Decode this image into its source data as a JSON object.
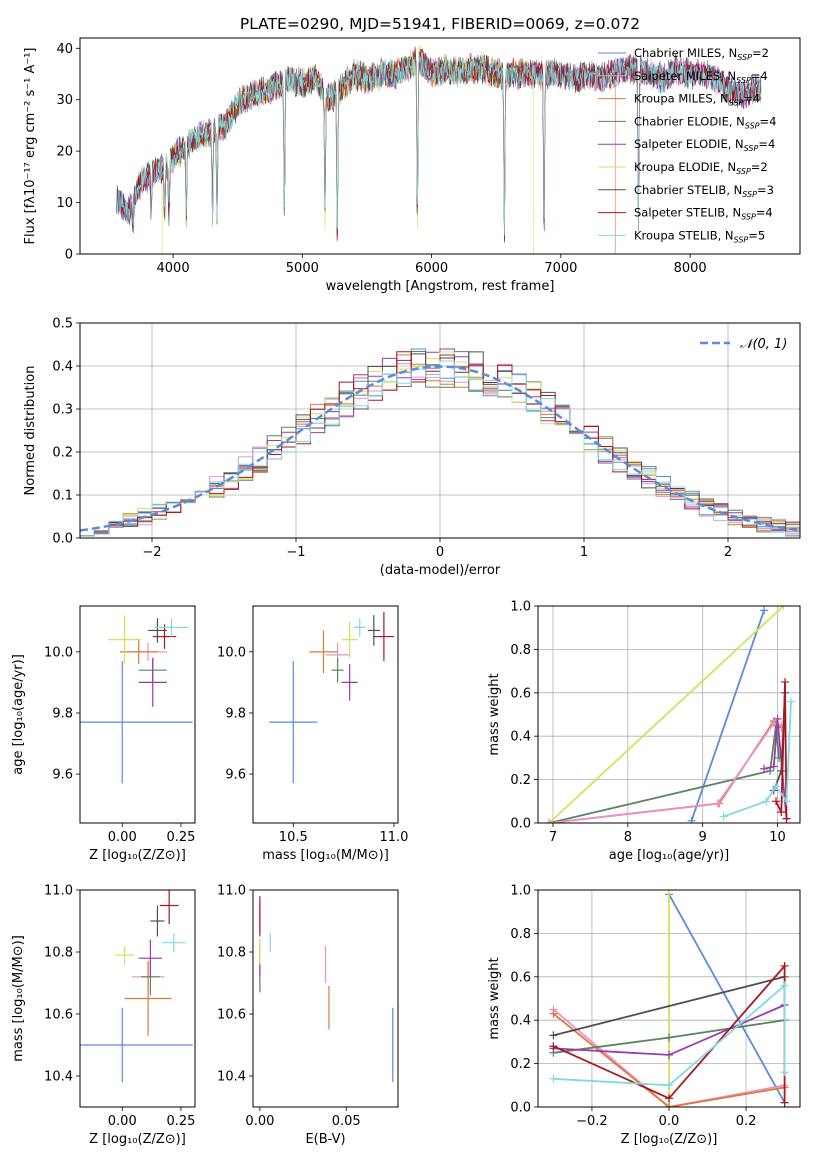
{
  "title": "PLATE=0290, MJD=51941, FIBERID=0069, z=0.072",
  "colors": {
    "chabrier_miles": "#5b8bdc",
    "salpeter_miles": "#e892c8",
    "kroupa_miles": "#dc7a36",
    "chabrier_elodie": "#5a8560",
    "salpeter_elodie": "#9a3aad",
    "kroupa_elodie": "#cfe45a",
    "chabrier_stelib": "#505050",
    "salpeter_stelib": "#a8181e",
    "kroupa_stelib": "#84d8e0",
    "normal_curve": "#5b8bdc"
  },
  "chart_data": [
    {
      "id": "spectrum",
      "type": "line",
      "xlabel": "wavelength [Angstrom, rest frame]",
      "ylabel": "Flux [fλ10⁻¹⁷ erg cm⁻² s⁻¹ A⁻¹]",
      "xlim": [
        3280,
        8850
      ],
      "ylim": [
        0,
        42
      ],
      "xticks": [
        4000,
        5000,
        6000,
        7000,
        8000
      ],
      "yticks": [
        0,
        10,
        20,
        30,
        40
      ],
      "legend": "right",
      "series": [
        {
          "name": "Chabrier MILES, N",
          "sub": "SSP",
          "suffix": "=2",
          "key": "chabrier_miles"
        },
        {
          "name": "Salpeter MILES, N",
          "sub": "SSP",
          "suffix": "=4",
          "key": "salpeter_miles"
        },
        {
          "name": "Kroupa MILES, N",
          "sub": "SSP",
          "suffix": "=4",
          "key": "kroupa_miles"
        },
        {
          "name": "Chabrier ELODIE, N",
          "sub": "SSP",
          "suffix": "=4",
          "key": "chabrier_elodie"
        },
        {
          "name": "Salpeter ELODIE, N",
          "sub": "SSP",
          "suffix": "=4",
          "key": "salpeter_elodie"
        },
        {
          "name": "Kroupa ELODIE, N",
          "sub": "SSP",
          "suffix": "=2",
          "key": "kroupa_elodie"
        },
        {
          "name": "Chabrier STELIB, N",
          "sub": "SSP",
          "suffix": "=3",
          "key": "chabrier_stelib"
        },
        {
          "name": "Salpeter STELIB, N",
          "sub": "SSP",
          "suffix": "=4",
          "key": "salpeter_stelib"
        },
        {
          "name": "Kroupa STELIB, N",
          "sub": "SSP",
          "suffix": "=5",
          "key": "kroupa_stelib"
        }
      ],
      "continuum": [
        [
          3560,
          11
        ],
        [
          3650,
          8
        ],
        [
          3750,
          14
        ],
        [
          3850,
          16
        ],
        [
          3950,
          17
        ],
        [
          4050,
          20
        ],
        [
          4150,
          22
        ],
        [
          4300,
          24
        ],
        [
          4400,
          25
        ],
        [
          4500,
          29
        ],
        [
          4600,
          31
        ],
        [
          4750,
          32
        ],
        [
          4900,
          34
        ],
        [
          5000,
          33
        ],
        [
          5100,
          34
        ],
        [
          5200,
          30
        ],
        [
          5300,
          32
        ],
        [
          5400,
          35
        ],
        [
          5500,
          34
        ],
        [
          5600,
          35
        ],
        [
          5700,
          35
        ],
        [
          5800,
          36
        ],
        [
          5900,
          38
        ],
        [
          6000,
          35
        ],
        [
          6100,
          36
        ],
        [
          6200,
          35
        ],
        [
          6300,
          36
        ],
        [
          6400,
          36
        ],
        [
          6500,
          35
        ],
        [
          6600,
          35
        ],
        [
          6700,
          35
        ],
        [
          6800,
          35
        ],
        [
          6900,
          35
        ],
        [
          7000,
          35
        ],
        [
          7100,
          34
        ],
        [
          7200,
          35
        ],
        [
          7300,
          34
        ],
        [
          7400,
          35
        ],
        [
          7500,
          36
        ],
        [
          7600,
          36
        ],
        [
          7700,
          35
        ],
        [
          7800,
          34
        ],
        [
          7900,
          36
        ],
        [
          8000,
          35
        ],
        [
          8100,
          35
        ],
        [
          8200,
          34
        ],
        [
          8300,
          32
        ],
        [
          8400,
          31
        ],
        [
          8500,
          32
        ],
        [
          8550,
          32
        ]
      ],
      "absorption": [
        [
          3690,
          5
        ],
        [
          3830,
          8
        ],
        [
          3934,
          10
        ],
        [
          3968,
          10
        ],
        [
          4102,
          15
        ],
        [
          4305,
          17
        ],
        [
          4340,
          17
        ],
        [
          4861,
          24
        ],
        [
          5175,
          24
        ],
        [
          5270,
          30
        ],
        [
          5890,
          31
        ],
        [
          6563,
          32
        ],
        [
          6870,
          31
        ],
        [
          7600,
          30
        ]
      ],
      "line_ends": [
        {
          "key": "kroupa_elodie",
          "from": 3915,
          "to": 6790
        },
        {
          "key": "kroupa_miles",
          "from": 3560,
          "to": 7420
        }
      ]
    },
    {
      "id": "residuals",
      "type": "bar",
      "xlabel": "(data-model)/error",
      "ylabel": "Normed distribution",
      "xlim": [
        -2.5,
        2.5
      ],
      "ylim": [
        0,
        0.5
      ],
      "xticks": [
        -2,
        -1,
        0,
        1,
        2
      ],
      "xtick_labels": [
        "−2",
        "−1",
        "0",
        "1",
        "2"
      ],
      "yticks": [
        0,
        0.1,
        0.2,
        0.3,
        0.4,
        0.5
      ],
      "legend": "top-right",
      "legend_label": "𝒩(0, 1)",
      "bin_width": 0.1,
      "bin_start": -2.5,
      "curve": {
        "mu": 0,
        "sigma": 1
      }
    },
    {
      "id": "age_vs_Z",
      "type": "scatter",
      "xlabel": "Z [log₁₀(Z/Z⊙)]",
      "ylabel": "age  [log₁₀(age/yr)]",
      "xlim": [
        -0.18,
        0.31
      ],
      "ylim": [
        9.44,
        10.15
      ],
      "xticks": [
        0,
        0.25
      ],
      "xtick_labels": [
        "0.00",
        "0.25"
      ],
      "yticks": [
        9.6,
        9.8,
        10.0
      ],
      "points": [
        {
          "key": "chabrier_miles",
          "x": 0.0,
          "y": 9.77,
          "xerr": 0.3,
          "yerr": 0.2
        },
        {
          "key": "salpeter_miles",
          "x": 0.11,
          "y": 10.0,
          "xerr": 0.08,
          "yerr": 0.03
        },
        {
          "key": "kroupa_miles",
          "x": 0.07,
          "y": 10.0,
          "xerr": 0.08,
          "yerr": 0.04
        },
        {
          "key": "chabrier_elodie",
          "x": 0.13,
          "y": 9.94,
          "xerr": 0.06,
          "yerr": 0.04
        },
        {
          "key": "salpeter_elodie",
          "x": 0.13,
          "y": 9.9,
          "xerr": 0.06,
          "yerr": 0.08
        },
        {
          "key": "kroupa_elodie",
          "x": 0.01,
          "y": 10.04,
          "xerr": 0.07,
          "yerr": 0.08
        },
        {
          "key": "chabrier_stelib",
          "x": 0.15,
          "y": 10.07,
          "xerr": 0.04,
          "yerr": 0.04
        },
        {
          "key": "salpeter_stelib",
          "x": 0.18,
          "y": 10.05,
          "xerr": 0.05,
          "yerr": 0.04
        },
        {
          "key": "kroupa_stelib",
          "x": 0.21,
          "y": 10.08,
          "xerr": 0.07,
          "yerr": 0.03
        }
      ]
    },
    {
      "id": "age_vs_mass",
      "type": "scatter",
      "xlabel": "mass [log₁₀(M/M⊙)]",
      "xlim": [
        10.3,
        11.02
      ],
      "ylim": [
        9.44,
        10.15
      ],
      "xticks": [
        10.5,
        11.0
      ],
      "xtick_labels": [
        "10.5",
        "11.0"
      ],
      "yticks": [
        9.6,
        9.8,
        10.0
      ],
      "points": [
        {
          "key": "chabrier_miles",
          "x": 10.5,
          "y": 9.77,
          "xerr": 0.12,
          "yerr": 0.2
        },
        {
          "key": "salpeter_miles",
          "x": 10.72,
          "y": 9.99,
          "xerr": 0.06,
          "yerr": 0.04
        },
        {
          "key": "kroupa_miles",
          "x": 10.65,
          "y": 10.0,
          "xerr": 0.07,
          "yerr": 0.07
        },
        {
          "key": "chabrier_elodie",
          "x": 10.72,
          "y": 9.94,
          "xerr": 0.03,
          "yerr": 0.04
        },
        {
          "key": "salpeter_elodie",
          "x": 10.78,
          "y": 9.9,
          "xerr": 0.04,
          "yerr": 0.06
        },
        {
          "key": "kroupa_elodie",
          "x": 10.78,
          "y": 10.04,
          "xerr": 0.04,
          "yerr": 0.06
        },
        {
          "key": "chabrier_stelib",
          "x": 10.9,
          "y": 10.07,
          "xerr": 0.03,
          "yerr": 0.05
        },
        {
          "key": "salpeter_stelib",
          "x": 10.95,
          "y": 10.05,
          "xerr": 0.05,
          "yerr": 0.08
        },
        {
          "key": "kroupa_stelib",
          "x": 10.83,
          "y": 10.08,
          "xerr": 0.03,
          "yerr": 0.03
        }
      ]
    },
    {
      "id": "weight_vs_age",
      "type": "line",
      "xlabel": "age  [log₁₀(age/yr)]",
      "ylabel": "mass weight",
      "xlim": [
        6.8,
        10.3
      ],
      "ylim": [
        0,
        1.0
      ],
      "xticks": [
        7,
        8,
        9,
        10
      ],
      "yticks": [
        0,
        0.2,
        0.4,
        0.6,
        0.8,
        1.0
      ],
      "series": [
        {
          "key": "chabrier_miles",
          "values": [
            [
              8.85,
              0.01
            ],
            [
              9.82,
              0.98
            ]
          ]
        },
        {
          "key": "kroupa_elodie",
          "values": [
            [
              6.95,
              0.0
            ],
            [
              10.08,
              1.0
            ]
          ]
        },
        {
          "key": "chabrier_elodie",
          "values": [
            [
              6.95,
              0.0
            ],
            [
              9.9,
              0.24
            ],
            [
              9.98,
              0.45
            ],
            [
              10.02,
              0.3
            ]
          ]
        },
        {
          "key": "kroupa_miles",
          "values": [
            [
              6.95,
              0.0
            ],
            [
              9.22,
              0.09
            ],
            [
              9.95,
              0.47
            ],
            [
              10.05,
              0.44
            ]
          ]
        },
        {
          "key": "salpeter_miles",
          "values": [
            [
              6.95,
              0.0
            ],
            [
              9.2,
              0.09
            ],
            [
              9.95,
              0.46
            ],
            [
              10.05,
              0.45
            ]
          ]
        },
        {
          "key": "salpeter_elodie",
          "values": [
            [
              9.82,
              0.25
            ],
            [
              9.95,
              0.26
            ],
            [
              10.0,
              0.48
            ],
            [
              10.12,
              0.02
            ]
          ]
        },
        {
          "key": "chabrier_stelib",
          "values": [
            [
              9.95,
              0.15
            ],
            [
              10.05,
              0.24
            ],
            [
              10.1,
              0.6
            ]
          ]
        },
        {
          "key": "salpeter_stelib",
          "values": [
            [
              9.98,
              0.1
            ],
            [
              10.05,
              0.05
            ],
            [
              10.1,
              0.65
            ],
            [
              10.12,
              0.02
            ]
          ]
        },
        {
          "key": "kroupa_stelib",
          "values": [
            [
              9.28,
              0.03
            ],
            [
              9.85,
              0.1
            ],
            [
              9.98,
              0.17
            ],
            [
              10.12,
              0.1
            ],
            [
              10.18,
              0.56
            ]
          ]
        }
      ]
    },
    {
      "id": "mass_vs_Z",
      "type": "scatter",
      "xlabel": "Z [log₁₀(Z/Z⊙)]",
      "ylabel": "mass [log₁₀(M/M⊙)]",
      "xlim": [
        -0.18,
        0.31
      ],
      "ylim": [
        10.3,
        11.0
      ],
      "xticks": [
        0,
        0.25
      ],
      "xtick_labels": [
        "0.00",
        "0.25"
      ],
      "yticks": [
        10.4,
        10.6,
        10.8,
        11.0
      ],
      "points": [
        {
          "key": "chabrier_miles",
          "x": 0.0,
          "y": 10.5,
          "xerr": 0.3,
          "yerr": 0.12
        },
        {
          "key": "salpeter_miles",
          "x": 0.11,
          "y": 10.72,
          "xerr": 0.07,
          "yerr": 0.05
        },
        {
          "key": "kroupa_miles",
          "x": 0.11,
          "y": 10.65,
          "xerr": 0.1,
          "yerr": 0.12
        },
        {
          "key": "chabrier_elodie",
          "x": 0.12,
          "y": 10.72,
          "xerr": 0.04,
          "yerr": 0.06
        },
        {
          "key": "salpeter_elodie",
          "x": 0.12,
          "y": 10.78,
          "xerr": 0.05,
          "yerr": 0.06
        },
        {
          "key": "kroupa_elodie",
          "x": 0.01,
          "y": 10.79,
          "xerr": 0.04,
          "yerr": 0.03
        },
        {
          "key": "chabrier_stelib",
          "x": 0.15,
          "y": 10.9,
          "xerr": 0.03,
          "yerr": 0.05
        },
        {
          "key": "salpeter_stelib",
          "x": 0.2,
          "y": 10.95,
          "xerr": 0.04,
          "yerr": 0.06
        },
        {
          "key": "kroupa_stelib",
          "x": 0.22,
          "y": 10.83,
          "xerr": 0.05,
          "yerr": 0.03
        }
      ]
    },
    {
      "id": "mass_vs_ebv",
      "type": "scatter",
      "xlabel": "E(B-V)",
      "xlim": [
        -0.004,
        0.08
      ],
      "ylim": [
        10.3,
        11.0
      ],
      "xticks": [
        0,
        0.05
      ],
      "xtick_labels": [
        "0.00",
        "0.05"
      ],
      "yticks": [
        10.4,
        10.6,
        10.8,
        11.0
      ],
      "points": [
        {
          "key": "chabrier_miles",
          "x": 0.077,
          "y": 10.5,
          "xerr": 0,
          "yerr": 0.12
        },
        {
          "key": "salpeter_miles",
          "x": 0.038,
          "y": 10.76,
          "xerr": 0,
          "yerr": 0.06
        },
        {
          "key": "kroupa_miles",
          "x": 0.04,
          "y": 10.62,
          "xerr": 0,
          "yerr": 0.07
        },
        {
          "key": "chabrier_elodie",
          "x": 0.0,
          "y": 10.72,
          "xerr": 0,
          "yerr": 0.05
        },
        {
          "key": "salpeter_elodie",
          "x": 0.0,
          "y": 10.78,
          "xerr": 0,
          "yerr": 0.06
        },
        {
          "key": "kroupa_elodie",
          "x": 0.0,
          "y": 10.8,
          "xerr": 0,
          "yerr": 0.04
        },
        {
          "key": "chabrier_stelib",
          "x": 0.0,
          "y": 10.9,
          "xerr": 0,
          "yerr": 0.05
        },
        {
          "key": "salpeter_stelib",
          "x": 0.0,
          "y": 10.92,
          "xerr": 0,
          "yerr": 0.06
        },
        {
          "key": "kroupa_stelib",
          "x": 0.006,
          "y": 10.83,
          "xerr": 0,
          "yerr": 0.03
        }
      ]
    },
    {
      "id": "weight_vs_Z",
      "type": "line",
      "xlabel": "Z [log₁₀(Z/Z⊙)]",
      "ylabel": "mass weight",
      "xlim": [
        -0.34,
        0.34
      ],
      "ylim": [
        0,
        1.0
      ],
      "xticks": [
        -0.2,
        0,
        0.2
      ],
      "xtick_labels": [
        "−0.2",
        "0.0",
        "0.2"
      ],
      "yticks": [
        0,
        0.2,
        0.4,
        0.6,
        0.8,
        1.0
      ],
      "series": [
        {
          "key": "chabrier_miles",
          "values": [
            [
              0.0,
              0.98
            ],
            [
              0.3,
              0.02
            ]
          ]
        },
        {
          "key": "kroupa_elodie",
          "values": [
            [
              0.0,
              1.0
            ],
            [
              0.0,
              0.0
            ]
          ]
        },
        {
          "key": "salpeter_miles",
          "values": [
            [
              -0.3,
              0.45
            ],
            [
              0.0,
              0.0
            ],
            [
              0.3,
              0.1
            ]
          ]
        },
        {
          "key": "kroupa_miles",
          "values": [
            [
              -0.3,
              0.43
            ],
            [
              0.0,
              0.0
            ],
            [
              0.3,
              0.09
            ]
          ]
        },
        {
          "key": "chabrier_elodie",
          "values": [
            [
              -0.3,
              0.25
            ],
            [
              0.0,
              0.32
            ],
            [
              0.3,
              0.4
            ]
          ]
        },
        {
          "key": "salpeter_elodie",
          "values": [
            [
              -0.3,
              0.27
            ],
            [
              0.0,
              0.24
            ],
            [
              0.3,
              0.47
            ]
          ]
        },
        {
          "key": "chabrier_stelib",
          "values": [
            [
              -0.3,
              0.33
            ],
            [
              0.3,
              0.6
            ]
          ]
        },
        {
          "key": "salpeter_stelib",
          "values": [
            [
              -0.3,
              0.28
            ],
            [
              0.0,
              0.04
            ],
            [
              0.3,
              0.65
            ],
            [
              0.3,
              0.02
            ]
          ]
        },
        {
          "key": "kroupa_stelib",
          "values": [
            [
              -0.3,
              0.13
            ],
            [
              0.0,
              0.1
            ],
            [
              0.3,
              0.56
            ],
            [
              0.3,
              0.16
            ]
          ]
        }
      ]
    }
  ]
}
